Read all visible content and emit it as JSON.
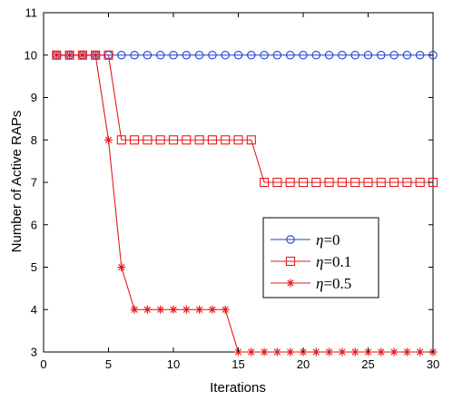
{
  "chart_data": {
    "type": "line",
    "xlabel": "Iterations",
    "ylabel": "Number of Active RAPs",
    "xlim": [
      0,
      30
    ],
    "ylim": [
      3,
      11
    ],
    "xticks": [
      0,
      5,
      10,
      15,
      20,
      25,
      30
    ],
    "yticks": [
      3,
      4,
      5,
      6,
      7,
      8,
      9,
      10,
      11
    ],
    "grid": false,
    "legend_position": "right",
    "x": [
      1,
      2,
      3,
      4,
      5,
      6,
      7,
      8,
      9,
      10,
      11,
      12,
      13,
      14,
      15,
      16,
      17,
      18,
      19,
      20,
      21,
      22,
      23,
      24,
      25,
      26,
      27,
      28,
      29,
      30
    ],
    "series": [
      {
        "name": "η=0",
        "name_symbol": "η",
        "name_value": "=0",
        "color": "#1f3fd6",
        "marker": "circle",
        "values": [
          10,
          10,
          10,
          10,
          10,
          10,
          10,
          10,
          10,
          10,
          10,
          10,
          10,
          10,
          10,
          10,
          10,
          10,
          10,
          10,
          10,
          10,
          10,
          10,
          10,
          10,
          10,
          10,
          10,
          10
        ]
      },
      {
        "name": "η=0.1",
        "name_symbol": "η",
        "name_value": "=0.1",
        "color": "#e41a1c",
        "marker": "square",
        "values": [
          10,
          10,
          10,
          10,
          10,
          8,
          8,
          8,
          8,
          8,
          8,
          8,
          8,
          8,
          8,
          8,
          7,
          7,
          7,
          7,
          7,
          7,
          7,
          7,
          7,
          7,
          7,
          7,
          7,
          7
        ]
      },
      {
        "name": "η=0.5",
        "name_symbol": "η",
        "name_value": "=0.5",
        "color": "#e41a1c",
        "marker": "star",
        "values": [
          10,
          10,
          10,
          10,
          8,
          5,
          4,
          4,
          4,
          4,
          4,
          4,
          4,
          4,
          3,
          3,
          3,
          3,
          3,
          3,
          3,
          3,
          3,
          3,
          3,
          3,
          3,
          3,
          3,
          3
        ]
      }
    ]
  }
}
